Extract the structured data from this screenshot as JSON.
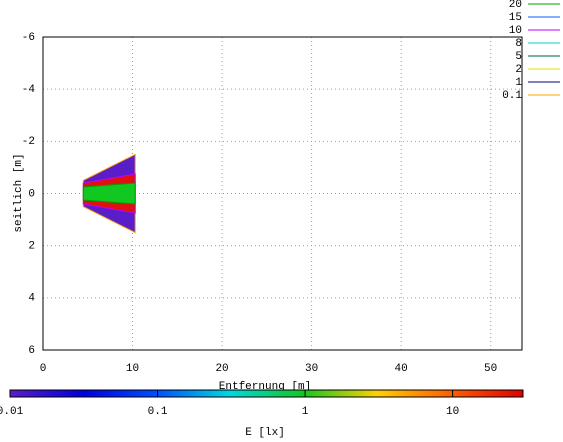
{
  "chart_data": {
    "type": "contour",
    "xlabel": "Entfernung [m]",
    "ylabel": "seitlich [m]",
    "xlim": [
      0,
      53.5
    ],
    "ylim": [
      -6,
      6
    ],
    "y_reversed": true,
    "xticks": [
      0,
      10,
      20,
      30,
      40,
      50
    ],
    "yticks": [
      -6,
      -4,
      -2,
      0,
      2,
      4,
      6
    ],
    "grid": true,
    "legend": "top-right",
    "series": [
      {
        "name": "20",
        "color": "#00a000",
        "fill": "#10c820",
        "x": [
          4.5,
          10.3,
          10.3,
          4.5
        ],
        "y": [
          -0.25,
          -0.4,
          0.4,
          0.25
        ]
      },
      {
        "name": "15",
        "color": "#0060ff"
      },
      {
        "name": "10",
        "color": "#c000ff",
        "fill": "#e01010",
        "x": [
          4.5,
          10.3,
          10.3,
          4.5
        ],
        "y": [
          -0.4,
          -0.75,
          0.75,
          0.4
        ]
      },
      {
        "name": "8",
        "color": "#00d0d0"
      },
      {
        "name": "5",
        "color": "#006040"
      },
      {
        "name": "2",
        "color": "#e0e000"
      },
      {
        "name": "1",
        "color": "#000080"
      },
      {
        "name": "0.1",
        "color": "#ffa000",
        "fill": "#5a1ec8",
        "x": [
          4.5,
          10.3,
          10.3,
          4.5
        ],
        "y": [
          -0.5,
          -1.5,
          1.5,
          0.5
        ]
      }
    ],
    "colorbar": {
      "label": "E [lx]",
      "log": true,
      "lim": [
        0.01,
        30
      ],
      "ticks": [
        0.01,
        0.1,
        1,
        10
      ],
      "colors": [
        "#5a1ec8",
        "#0000e0",
        "#0050ff",
        "#00d8e0",
        "#10c820",
        "#ffd000",
        "#ff6000",
        "#e00000"
      ]
    }
  }
}
